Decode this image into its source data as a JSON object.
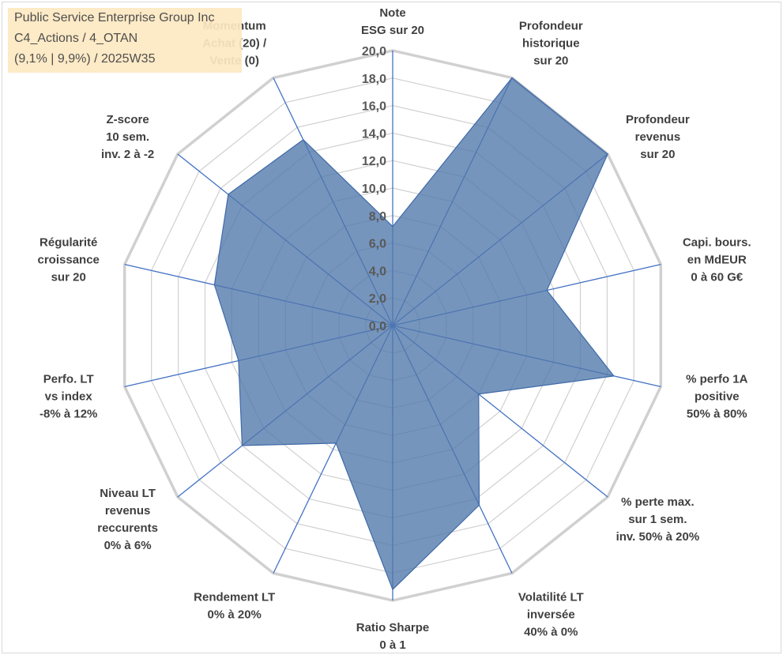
{
  "info_box": {
    "line1": "Public Service Enterprise Group Inc",
    "line2": "C4_Actions / 4_OTAN",
    "line3": "(9,1% | 9,9%) / 2025W35"
  },
  "chart_data": {
    "type": "radar",
    "title": "",
    "r_range": [
      0,
      20
    ],
    "r_step": 2,
    "tick_labels": [
      "0,0",
      "2,0",
      "4,0",
      "6,0",
      "8,0",
      "10,0",
      "12,0",
      "14,0",
      "16,0",
      "18,0",
      "20,0"
    ],
    "grid": true,
    "series_color": "#4f77ab",
    "axes": [
      {
        "label": [
          "Note",
          "ESG sur 20"
        ],
        "value": 7.2
      },
      {
        "label": [
          "Profondeur",
          "historique",
          "sur 20"
        ],
        "value": 20
      },
      {
        "label": [
          "Profondeur",
          "revenus",
          "sur 20"
        ],
        "value": 20
      },
      {
        "label": [
          "Capi. bours.",
          "en MdEUR",
          "0 à 60 G€"
        ],
        "value": 11.5
      },
      {
        "label": [
          "% perfo 1A",
          "positive",
          "50% à 80%"
        ],
        "value": 16.5
      },
      {
        "label": [
          "% perte max.",
          "sur 1 sem.",
          "inv. 50% à 20%"
        ],
        "value": 8
      },
      {
        "label": [
          "Volatilité LT",
          "inversée",
          "40% à 0%"
        ],
        "value": 14.5
      },
      {
        "label": [
          "Ratio Sharpe",
          "0 à 1"
        ],
        "value": 19.2
      },
      {
        "label": [
          "Rendement LT",
          "0% à 20%"
        ],
        "value": 9.5
      },
      {
        "label": [
          "Niveau LT",
          "revenus",
          "reccurents",
          "0% à 6%"
        ],
        "value": 14
      },
      {
        "label": [
          "Perfo. LT",
          "vs index",
          "-8% à 12%"
        ],
        "value": 11.5
      },
      {
        "label": [
          "Régularité",
          "croissance",
          "sur 20"
        ],
        "value": 13.3
      },
      {
        "label": [
          "Z-score",
          "10 sem.",
          "inv. 2 à -2"
        ],
        "value": 15.3
      },
      {
        "label": [
          "Momentum",
          "Achat (20) /",
          "Vente (0)"
        ],
        "value": 15
      }
    ]
  }
}
